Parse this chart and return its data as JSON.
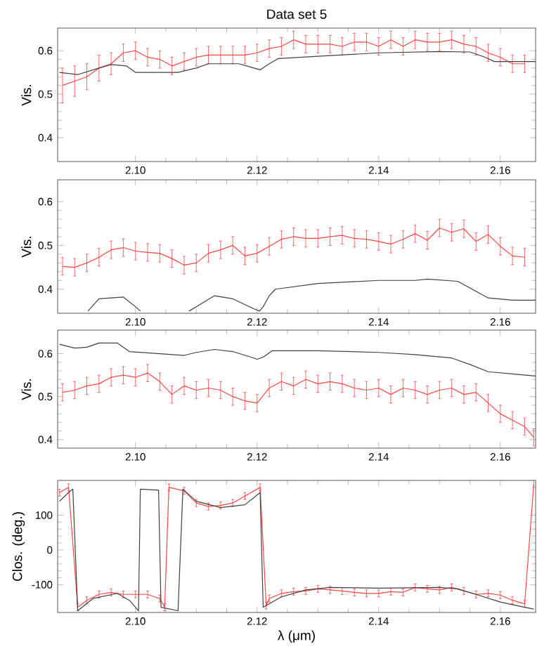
{
  "chart_data": [
    {
      "type": "line",
      "title": "Data set 5",
      "ylabel": "Vis.",
      "xlim": [
        2.0872,
        2.1658
      ],
      "ylim": [
        0.345,
        0.652
      ],
      "xticks": [
        {
          "value": 2.1,
          "label": "2.10"
        },
        {
          "value": 2.12,
          "label": "2.12"
        },
        {
          "value": 2.14,
          "label": "2.14"
        },
        {
          "value": 2.16,
          "label": "2.16"
        }
      ],
      "yticks": [
        0.4,
        0.5,
        0.6
      ],
      "series": [
        {
          "color": "#ff4444",
          "x": [
            2.088,
            2.09,
            2.092,
            2.094,
            2.096,
            2.098,
            2.1,
            2.102,
            2.104,
            2.106,
            2.108,
            2.11,
            2.112,
            2.114,
            2.116,
            2.118,
            2.12,
            2.122,
            2.124,
            2.126,
            2.128,
            2.13,
            2.132,
            2.134,
            2.136,
            2.138,
            2.14,
            2.142,
            2.144,
            2.146,
            2.148,
            2.15,
            2.152,
            2.154,
            2.156,
            2.158,
            2.16,
            2.162,
            2.164
          ],
          "values": [
            0.52,
            0.53,
            0.54,
            0.56,
            0.57,
            0.595,
            0.6,
            0.585,
            0.58,
            0.565,
            0.575,
            0.585,
            0.59,
            0.59,
            0.59,
            0.59,
            0.595,
            0.605,
            0.61,
            0.625,
            0.615,
            0.615,
            0.615,
            0.61,
            0.62,
            0.62,
            0.61,
            0.625,
            0.61,
            0.625,
            0.62,
            0.62,
            0.625,
            0.615,
            0.61,
            0.595,
            0.585,
            0.57,
            0.57
          ],
          "errors": [
            0.04,
            0.035,
            0.03,
            0.03,
            0.025,
            0.02,
            0.02,
            0.02,
            0.02,
            0.02,
            0.02,
            0.02,
            0.02,
            0.02,
            0.02,
            0.02,
            0.02,
            0.02,
            0.02,
            0.02,
            0.02,
            0.02,
            0.02,
            0.02,
            0.02,
            0.02,
            0.02,
            0.02,
            0.02,
            0.02,
            0.02,
            0.02,
            0.02,
            0.02,
            0.02,
            0.02,
            0.02,
            0.02,
            0.02
          ]
        },
        {
          "color": "#404040",
          "x": [
            2.0875,
            2.0905,
            2.094,
            2.096,
            2.0985,
            2.1,
            2.107,
            2.11,
            2.112,
            2.117,
            2.119,
            2.1205,
            2.122,
            2.1235,
            2.13,
            2.14,
            2.15,
            2.155,
            2.1575,
            2.159,
            2.1658
          ],
          "values": [
            0.55,
            0.545,
            0.56,
            0.568,
            0.565,
            0.55,
            0.55,
            0.56,
            0.57,
            0.57,
            0.562,
            0.556,
            0.57,
            0.582,
            0.587,
            0.595,
            0.598,
            0.597,
            0.585,
            0.575,
            0.575
          ]
        }
      ]
    },
    {
      "type": "line",
      "ylabel": "Vis.",
      "xlim": [
        2.0872,
        2.1658
      ],
      "ylim": [
        0.345,
        0.65
      ],
      "xticks": [
        {
          "value": 2.1,
          "label": "2.10"
        },
        {
          "value": 2.12,
          "label": "2.12"
        },
        {
          "value": 2.14,
          "label": "2.14"
        },
        {
          "value": 2.16,
          "label": "2.16"
        }
      ],
      "yticks": [
        0.4,
        0.5,
        0.6
      ],
      "series": [
        {
          "color": "#ff4444",
          "x": [
            2.088,
            2.09,
            2.092,
            2.094,
            2.096,
            2.098,
            2.1,
            2.102,
            2.104,
            2.106,
            2.108,
            2.11,
            2.112,
            2.114,
            2.116,
            2.118,
            2.12,
            2.122,
            2.124,
            2.126,
            2.128,
            2.13,
            2.132,
            2.134,
            2.136,
            2.138,
            2.14,
            2.142,
            2.144,
            2.146,
            2.148,
            2.15,
            2.152,
            2.154,
            2.156,
            2.158,
            2.16,
            2.162,
            2.164
          ],
          "values": [
            0.452,
            0.45,
            0.46,
            0.473,
            0.49,
            0.495,
            0.487,
            0.484,
            0.482,
            0.47,
            0.455,
            0.46,
            0.482,
            0.49,
            0.5,
            0.476,
            0.482,
            0.498,
            0.514,
            0.52,
            0.516,
            0.516,
            0.52,
            0.523,
            0.516,
            0.514,
            0.509,
            0.503,
            0.514,
            0.527,
            0.512,
            0.54,
            0.53,
            0.538,
            0.509,
            0.525,
            0.498,
            0.476,
            0.473
          ],
          "errors": [
            0.02,
            0.02,
            0.02,
            0.02,
            0.02,
            0.02,
            0.02,
            0.02,
            0.02,
            0.02,
            0.02,
            0.02,
            0.02,
            0.02,
            0.02,
            0.02,
            0.02,
            0.02,
            0.02,
            0.02,
            0.02,
            0.02,
            0.02,
            0.02,
            0.02,
            0.02,
            0.02,
            0.02,
            0.02,
            0.02,
            0.02,
            0.02,
            0.02,
            0.02,
            0.02,
            0.02,
            0.02,
            0.02,
            0.02
          ]
        },
        {
          "color": "#404040",
          "x": [
            2.0922,
            2.094,
            2.098,
            2.1,
            2.1008,
            2.105,
            2.1088,
            2.11,
            2.113,
            2.116,
            2.1195,
            2.1204,
            2.121,
            2.122,
            2.123,
            2.13,
            2.14,
            2.146,
            2.148,
            2.153,
            2.156,
            2.158,
            2.162,
            2.1658
          ],
          "values": [
            0.35,
            0.378,
            0.382,
            0.36,
            0.35,
            null,
            0.35,
            0.36,
            0.385,
            0.378,
            0.355,
            0.35,
            0.36,
            0.385,
            0.4,
            0.413,
            0.42,
            0.42,
            0.423,
            0.418,
            0.395,
            0.38,
            0.375,
            0.375
          ]
        }
      ]
    },
    {
      "type": "line",
      "ylabel": "Vis.",
      "xlim": [
        2.0872,
        2.1658
      ],
      "ylim": [
        0.38,
        0.655
      ],
      "xticks": [
        {
          "value": 2.1,
          "label": "2.10"
        },
        {
          "value": 2.12,
          "label": "2.12"
        },
        {
          "value": 2.14,
          "label": "2.14"
        },
        {
          "value": 2.16,
          "label": "2.16"
        }
      ],
      "yticks": [
        0.4,
        0.5,
        0.6
      ],
      "series": [
        {
          "color": "#ff4444",
          "x": [
            2.088,
            2.09,
            2.092,
            2.094,
            2.096,
            2.098,
            2.1,
            2.102,
            2.104,
            2.106,
            2.108,
            2.11,
            2.112,
            2.114,
            2.116,
            2.118,
            2.12,
            2.122,
            2.124,
            2.126,
            2.128,
            2.13,
            2.132,
            2.134,
            2.136,
            2.138,
            2.14,
            2.142,
            2.144,
            2.146,
            2.148,
            2.15,
            2.152,
            2.154,
            2.156,
            2.158,
            2.16,
            2.162,
            2.164,
            2.1655
          ],
          "values": [
            0.51,
            0.515,
            0.525,
            0.53,
            0.545,
            0.55,
            0.545,
            0.555,
            0.535,
            0.505,
            0.525,
            0.515,
            0.52,
            0.515,
            0.5,
            0.49,
            0.485,
            0.52,
            0.535,
            0.525,
            0.54,
            0.53,
            0.535,
            0.53,
            0.52,
            0.515,
            0.52,
            0.505,
            0.52,
            0.515,
            0.505,
            0.515,
            0.52,
            0.505,
            0.51,
            0.485,
            0.46,
            0.445,
            0.43,
            0.405
          ],
          "errors": [
            0.02,
            0.02,
            0.02,
            0.02,
            0.02,
            0.02,
            0.02,
            0.02,
            0.02,
            0.02,
            0.02,
            0.02,
            0.02,
            0.02,
            0.02,
            0.02,
            0.02,
            0.02,
            0.02,
            0.02,
            0.02,
            0.02,
            0.02,
            0.02,
            0.02,
            0.02,
            0.02,
            0.02,
            0.02,
            0.02,
            0.02,
            0.02,
            0.02,
            0.02,
            0.02,
            0.02,
            0.02,
            0.02,
            0.02,
            0.02
          ]
        },
        {
          "color": "#404040",
          "x": [
            2.0875,
            2.09,
            2.092,
            2.094,
            2.097,
            2.099,
            2.102,
            2.108,
            2.11,
            2.113,
            2.116,
            2.119,
            2.12,
            2.121,
            2.1225,
            2.13,
            2.14,
            2.146,
            2.152,
            2.155,
            2.158,
            2.162,
            2.1658
          ],
          "values": [
            0.622,
            0.613,
            0.615,
            0.625,
            0.625,
            0.605,
            0.602,
            0.596,
            0.603,
            0.61,
            0.605,
            0.592,
            0.587,
            0.592,
            0.607,
            0.607,
            0.603,
            0.598,
            0.59,
            0.575,
            0.558,
            0.553,
            0.548
          ]
        }
      ]
    },
    {
      "type": "line",
      "ylabel": "Clos. (deg.)",
      "xlabel": "λ (μm)",
      "xlim": [
        2.0872,
        2.1658
      ],
      "ylim": [
        -180,
        200
      ],
      "xticks": [
        {
          "value": 2.1,
          "label": "2.10"
        },
        {
          "value": 2.12,
          "label": "2.12"
        },
        {
          "value": 2.14,
          "label": "2.14"
        },
        {
          "value": 2.16,
          "label": "2.16"
        }
      ],
      "yticks": [
        -100,
        0,
        100
      ],
      "series": [
        {
          "color": "#ff4444",
          "x": [
            2.0875,
            2.089,
            2.0905,
            2.092,
            2.094,
            2.096,
            2.098,
            2.1,
            2.102,
            2.104,
            2.1048,
            2.1055,
            2.108,
            2.11,
            2.112,
            2.114,
            2.116,
            2.118,
            2.1205,
            2.1215,
            2.122,
            2.124,
            2.126,
            2.128,
            2.13,
            2.132,
            2.134,
            2.136,
            2.138,
            2.14,
            2.142,
            2.144,
            2.146,
            2.148,
            2.15,
            2.152,
            2.154,
            2.156,
            2.158,
            2.16,
            2.162,
            2.164,
            2.1655
          ],
          "values": [
            165,
            180,
            -165,
            -145,
            -128,
            -122,
            -128,
            -128,
            -128,
            -140,
            -165,
            180,
            170,
            135,
            125,
            128,
            135,
            155,
            180,
            -160,
            -140,
            -125,
            -120,
            -118,
            -112,
            -115,
            -118,
            -122,
            -125,
            -125,
            -120,
            -122,
            -108,
            -112,
            -115,
            -108,
            -118,
            -128,
            -125,
            -130,
            -145,
            -155,
            190
          ],
          "errors": [
            10,
            10,
            10,
            10,
            10,
            10,
            10,
            10,
            10,
            10,
            10,
            10,
            10,
            10,
            10,
            10,
            10,
            10,
            10,
            10,
            10,
            10,
            10,
            10,
            10,
            10,
            10,
            10,
            10,
            10,
            10,
            10,
            10,
            10,
            10,
            10,
            10,
            10,
            10,
            10,
            10,
            10,
            10
          ]
        },
        {
          "color": "#404040",
          "x": [
            2.0875,
            2.089,
            2.0897,
            2.0905,
            2.093,
            2.097,
            2.099,
            2.1005,
            2.1008,
            2.1038,
            2.1042,
            2.107,
            2.1078,
            2.11,
            2.114,
            2.118,
            2.1205,
            2.121,
            2.124,
            2.128,
            2.132,
            2.14,
            2.15,
            2.153,
            2.156,
            2.16,
            2.164,
            2.1655
          ],
          "values": [
            140,
            165,
            175,
            -175,
            -140,
            -125,
            -145,
            -175,
            175,
            172,
            -165,
            -175,
            175,
            140,
            122,
            130,
            165,
            -165,
            -135,
            -115,
            -108,
            -110,
            -108,
            -112,
            -128,
            -150,
            -165,
            -170
          ]
        }
      ]
    }
  ]
}
